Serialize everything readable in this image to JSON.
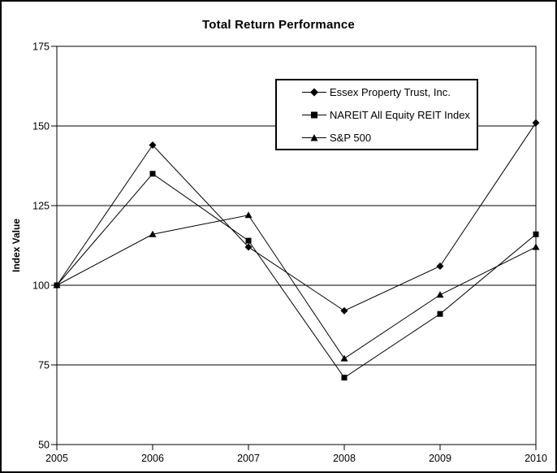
{
  "chart_data": {
    "type": "line",
    "title": "Total Return Performance",
    "xlabel": "",
    "ylabel": "Index Value",
    "x": [
      2005,
      2006,
      2007,
      2008,
      2009,
      2010
    ],
    "xlim": [
      2005,
      2010
    ],
    "ylim": [
      50,
      175
    ],
    "yticks": [
      50,
      75,
      100,
      125,
      150,
      175
    ],
    "grid": "horizontal",
    "legend_position": "inside-top-center",
    "line_color": "#000000",
    "background_color": "#ffffff",
    "series": [
      {
        "name": "Essex Property Trust, Inc.",
        "marker": "diamond",
        "values": [
          100,
          144,
          112,
          92,
          106,
          151
        ]
      },
      {
        "name": "NAREIT All Equity REIT Index",
        "marker": "square",
        "values": [
          100,
          135,
          114,
          71,
          91,
          116
        ]
      },
      {
        "name": "S&P 500",
        "marker": "triangle",
        "values": [
          100,
          116,
          122,
          77,
          97,
          112
        ]
      }
    ]
  }
}
